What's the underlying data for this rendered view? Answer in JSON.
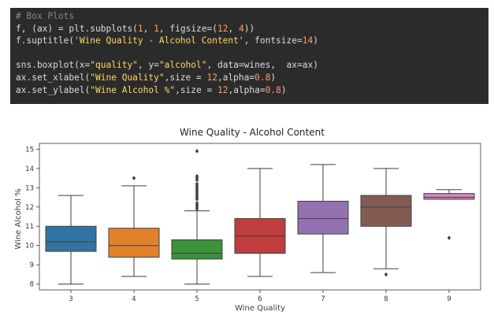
{
  "code_cell": {
    "lines": [
      {
        "parts": [
          {
            "t": "# Box Plots",
            "c": "cm"
          }
        ]
      },
      {
        "parts": [
          {
            "t": "f, (ax) = plt.subplots(",
            "c": ""
          },
          {
            "t": "1",
            "c": "num"
          },
          {
            "t": ", ",
            "c": ""
          },
          {
            "t": "1",
            "c": "num"
          },
          {
            "t": ", figsize=(",
            "c": ""
          },
          {
            "t": "12",
            "c": "num"
          },
          {
            "t": ", ",
            "c": ""
          },
          {
            "t": "4",
            "c": "num"
          },
          {
            "t": "))",
            "c": ""
          }
        ]
      },
      {
        "parts": [
          {
            "t": "f.suptitle(",
            "c": ""
          },
          {
            "t": "'Wine Quality - Alcohol Content'",
            "c": "kw-str"
          },
          {
            "t": ", fontsize=",
            "c": ""
          },
          {
            "t": "14",
            "c": "num"
          },
          {
            "t": ")",
            "c": ""
          }
        ]
      },
      {
        "parts": [
          {
            "t": "",
            "c": ""
          }
        ]
      },
      {
        "parts": [
          {
            "t": "sns.boxplot(x=",
            "c": ""
          },
          {
            "t": "\"quality\"",
            "c": "kw-str"
          },
          {
            "t": ", y=",
            "c": ""
          },
          {
            "t": "\"alcohol\"",
            "c": "kw-str"
          },
          {
            "t": ", data=wines,  ax=ax)",
            "c": ""
          }
        ]
      },
      {
        "parts": [
          {
            "t": "ax.set_xlabel(",
            "c": ""
          },
          {
            "t": "\"Wine Quality\"",
            "c": "kw-str"
          },
          {
            "t": ",size = ",
            "c": ""
          },
          {
            "t": "12",
            "c": "num"
          },
          {
            "t": ",alpha=",
            "c": ""
          },
          {
            "t": "0.8",
            "c": "num"
          },
          {
            "t": ")",
            "c": ""
          }
        ]
      },
      {
        "parts": [
          {
            "t": "ax.set_ylabel(",
            "c": ""
          },
          {
            "t": "\"Wine Alcohol %\"",
            "c": "kw-str"
          },
          {
            "t": ",size = ",
            "c": ""
          },
          {
            "t": "12",
            "c": "num"
          },
          {
            "t": ",alpha=",
            "c": ""
          },
          {
            "t": "0.8",
            "c": "num"
          },
          {
            "t": ")",
            "c": ""
          }
        ]
      }
    ]
  },
  "chart_data": {
    "type": "box",
    "title": "Wine Quality - Alcohol Content",
    "xlabel": "Wine Quality",
    "ylabel": "Wine Alcohol %",
    "categories": [
      "3",
      "4",
      "5",
      "6",
      "7",
      "8",
      "9"
    ],
    "ylim": [
      7.7,
      15.3
    ],
    "yticks": [
      8,
      9,
      10,
      11,
      12,
      13,
      14,
      15
    ],
    "grid": false,
    "boxes": [
      {
        "category": "3",
        "q1": 9.7,
        "median": 10.2,
        "q3": 11.0,
        "whisker_low": 8.0,
        "whisker_high": 12.6,
        "outliers": [],
        "color": "#3274a1"
      },
      {
        "category": "4",
        "q1": 9.4,
        "median": 10.0,
        "q3": 10.9,
        "whisker_low": 8.4,
        "whisker_high": 13.1,
        "outliers": [
          13.5
        ],
        "color": "#e1812c"
      },
      {
        "category": "5",
        "q1": 9.3,
        "median": 9.6,
        "q3": 10.3,
        "whisker_low": 8.0,
        "whisker_high": 11.8,
        "outliers": [
          11.9,
          12.0,
          12.1,
          12.2,
          12.4,
          12.5,
          12.6,
          12.7,
          12.8,
          12.9,
          13.0,
          13.1,
          13.2,
          13.4,
          13.5,
          13.6,
          14.9
        ],
        "color": "#3a923a"
      },
      {
        "category": "6",
        "q1": 9.6,
        "median": 10.5,
        "q3": 11.4,
        "whisker_low": 8.4,
        "whisker_high": 14.0,
        "outliers": [],
        "color": "#c03d3e"
      },
      {
        "category": "7",
        "q1": 10.6,
        "median": 11.4,
        "q3": 12.3,
        "whisker_low": 8.6,
        "whisker_high": 14.2,
        "outliers": [],
        "color": "#9372b2"
      },
      {
        "category": "8",
        "q1": 11.0,
        "median": 12.0,
        "q3": 12.6,
        "whisker_low": 8.8,
        "whisker_high": 14.0,
        "outliers": [
          8.5
        ],
        "color": "#845b53"
      },
      {
        "category": "9",
        "q1": 12.4,
        "median": 12.5,
        "q3": 12.7,
        "whisker_low": 12.4,
        "whisker_high": 12.9,
        "outliers": [
          10.4
        ],
        "color": "#d684bd"
      }
    ]
  }
}
